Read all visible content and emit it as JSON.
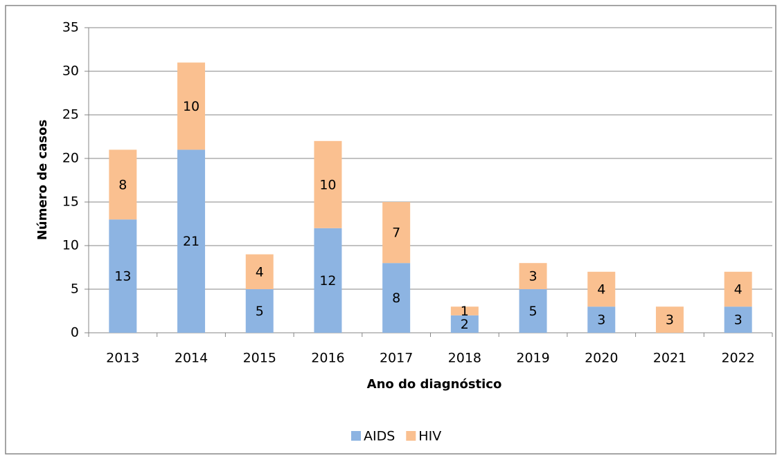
{
  "chart_data": {
    "type": "stacked-bar",
    "xlabel": "Ano do diagnóstico",
    "ylabel": "Número de casos",
    "categories": [
      "2013",
      "2014",
      "2015",
      "2016",
      "2017",
      "2018",
      "2019",
      "2020",
      "2021",
      "2022"
    ],
    "series": [
      {
        "name": "AIDS",
        "color": "#8db4e2",
        "values": [
          13,
          21,
          5,
          12,
          8,
          2,
          5,
          3,
          null,
          3
        ]
      },
      {
        "name": "HIV",
        "color": "#fac090",
        "values": [
          8,
          10,
          4,
          10,
          7,
          1,
          3,
          4,
          3,
          4
        ]
      }
    ],
    "ylim": [
      0,
      35
    ],
    "yticks": [
      0,
      5,
      10,
      15,
      20,
      25,
      30,
      35
    ],
    "grid": true,
    "legend": "bottom"
  }
}
